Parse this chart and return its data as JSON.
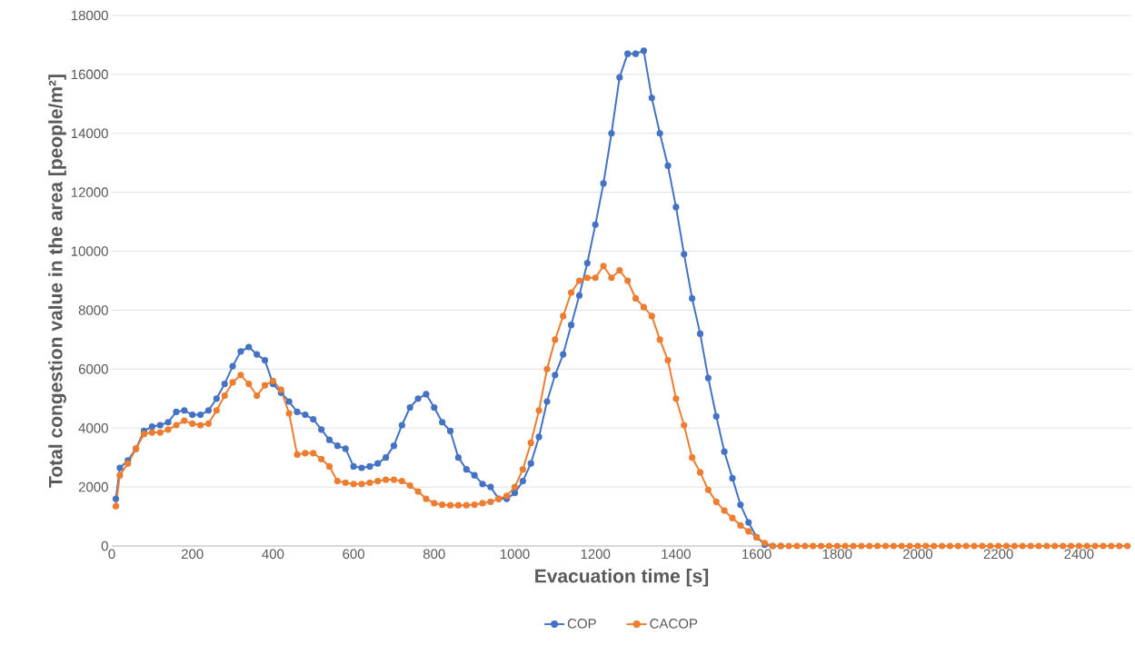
{
  "chart_data": {
    "type": "line",
    "xlabel": "Evacuation time [s]",
    "ylabel": "Total congestion value in the area [people/m²]",
    "x": [
      10,
      20,
      40,
      60,
      80,
      100,
      120,
      140,
      160,
      180,
      200,
      220,
      240,
      260,
      280,
      300,
      320,
      340,
      360,
      380,
      400,
      420,
      440,
      460,
      480,
      500,
      520,
      540,
      560,
      580,
      600,
      620,
      640,
      660,
      680,
      700,
      720,
      740,
      760,
      780,
      800,
      820,
      840,
      860,
      880,
      900,
      920,
      940,
      960,
      980,
      1000,
      1020,
      1040,
      1060,
      1080,
      1100,
      1120,
      1140,
      1160,
      1180,
      1200,
      1220,
      1240,
      1260,
      1280,
      1300,
      1320,
      1340,
      1360,
      1380,
      1400,
      1420,
      1440,
      1460,
      1480,
      1500,
      1520,
      1540,
      1560,
      1580,
      1600,
      1620,
      1640,
      1660,
      1680,
      1700,
      1720,
      1740,
      1760,
      1780,
      1800,
      1820,
      1840,
      1860,
      1880,
      1900,
      1920,
      1940,
      1960,
      1980,
      2000,
      2020,
      2040,
      2060,
      2080,
      2100,
      2120,
      2140,
      2160,
      2180,
      2200,
      2220,
      2240,
      2260,
      2280,
      2300,
      2320,
      2340,
      2360,
      2380,
      2400,
      2420,
      2440,
      2460,
      2480,
      2500,
      2520
    ],
    "series": [
      {
        "name": "COP",
        "color": "#4472c4",
        "values": [
          1600,
          2650,
          2900,
          3300,
          3900,
          4050,
          4100,
          4200,
          4550,
          4600,
          4450,
          4450,
          4600,
          5000,
          5500,
          6100,
          6600,
          6750,
          6500,
          6300,
          5500,
          5200,
          4900,
          4550,
          4450,
          4300,
          3950,
          3600,
          3400,
          3300,
          2700,
          2650,
          2700,
          2800,
          3000,
          3400,
          4100,
          4700,
          5000,
          5150,
          4700,
          4200,
          3900,
          3000,
          2600,
          2400,
          2100,
          2000,
          1600,
          1600,
          1800,
          2200,
          2800,
          3700,
          4900,
          5800,
          6500,
          7500,
          8500,
          9600,
          10900,
          12300,
          14000,
          15900,
          16700,
          16700,
          16800,
          15200,
          14000,
          12900,
          11500,
          9900,
          8400,
          7200,
          5700,
          4400,
          3200,
          2300,
          1400,
          800,
          300,
          50,
          0,
          0,
          null,
          null,
          null,
          null,
          null,
          null,
          null,
          null,
          null,
          null,
          null,
          null,
          null,
          null,
          null,
          null,
          null,
          null,
          null,
          null,
          null,
          null,
          null,
          null,
          null,
          null,
          null,
          null,
          null,
          null,
          null,
          null,
          null,
          null,
          null,
          null,
          null,
          null,
          null,
          null,
          null,
          null,
          null
        ]
      },
      {
        "name": "CACOP",
        "color": "#ed7d31",
        "values": [
          1350,
          2400,
          2800,
          3300,
          3800,
          3850,
          3850,
          3950,
          4100,
          4250,
          4150,
          4100,
          4150,
          4600,
          5100,
          5550,
          5800,
          5500,
          5100,
          5450,
          5600,
          5300,
          4500,
          3100,
          3150,
          3150,
          2950,
          2700,
          2200,
          2150,
          2100,
          2100,
          2150,
          2200,
          2250,
          2250,
          2200,
          2050,
          1850,
          1600,
          1450,
          1400,
          1380,
          1380,
          1380,
          1400,
          1450,
          1500,
          1600,
          1700,
          2000,
          2600,
          3500,
          4600,
          6000,
          7000,
          7800,
          8600,
          9000,
          9100,
          9100,
          9500,
          9100,
          9350,
          9000,
          8400,
          8100,
          7800,
          7000,
          6300,
          5000,
          4100,
          3000,
          2500,
          1900,
          1500,
          1200,
          950,
          700,
          500,
          300,
          100,
          0,
          0,
          0,
          0,
          0,
          0,
          0,
          0,
          0,
          0,
          0,
          0,
          0,
          0,
          0,
          0,
          0,
          0,
          0,
          0,
          0,
          0,
          0,
          0,
          0,
          0,
          0,
          0,
          0,
          0,
          0,
          0,
          0,
          0,
          0,
          0,
          0,
          0,
          0,
          0,
          0,
          0,
          0,
          0,
          0
        ]
      }
    ],
    "xlim": [
      0,
      2530
    ],
    "xticks": [
      0,
      200,
      400,
      600,
      800,
      1000,
      1200,
      1400,
      1600,
      1800,
      2000,
      2200,
      2400
    ],
    "ylim": [
      0,
      18000
    ],
    "yticks": [
      0,
      2000,
      4000,
      6000,
      8000,
      10000,
      12000,
      14000,
      16000,
      18000
    ],
    "grid": "y",
    "legend": "bottom",
    "marker": "circle",
    "line_style": "solid"
  }
}
